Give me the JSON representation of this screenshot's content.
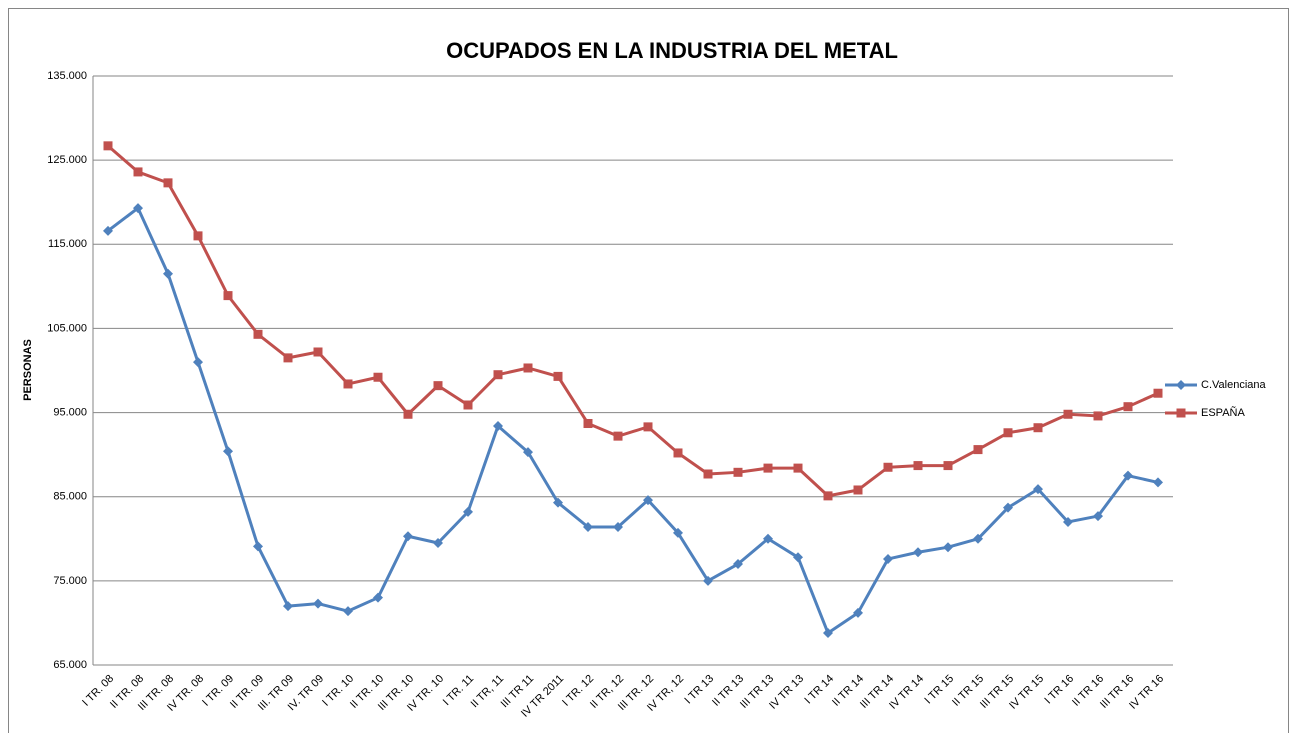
{
  "chart_data": {
    "type": "line",
    "title": "OCUPADOS EN LA INDUSTRIA DEL METAL",
    "y_axis_label": "PERSONAS",
    "categories": [
      "I TR. 08",
      "II TR. 08",
      "III TR. 08",
      "IV TR. 08",
      "I TR. 09",
      "II TR. 09",
      "III. TR 09",
      "IV. TR 09",
      "I TR. 10",
      "II TR. 10",
      "III TR. 10",
      "IV TR. 10",
      "I TR. 11",
      "II TR, 11",
      "III TR 11",
      "IV TR 2011",
      "I TR. 12",
      "II TR, 12",
      "III TR. 12",
      "IV TR, 12",
      "I TR 13",
      "II TR 13",
      "III TR 13",
      "IV TR 13",
      "I TR 14",
      "II TR 14",
      "III TR 14",
      "IV TR 14",
      "I TR 15",
      "II TR 15",
      "III TR 15",
      "IV TR 15",
      "I TR 16",
      "II TR 16",
      "III TR 16",
      "IV TR 16"
    ],
    "series": [
      {
        "name": "C.Valenciana",
        "color": "#4f81bd",
        "marker": "diamond",
        "values": [
          116600,
          119300,
          111500,
          101000,
          90400,
          79100,
          72000,
          72300,
          71400,
          73000,
          80300,
          79500,
          83200,
          93400,
          90300,
          84300,
          81400,
          81400,
          84600,
          80700,
          75000,
          77000,
          80000,
          77800,
          68800,
          71200,
          77600,
          78400,
          79000,
          80000,
          83700,
          85900,
          82000,
          82700,
          87500,
          86700
        ]
      },
      {
        "name": "ESPAÑA",
        "color": "#c0504d",
        "marker": "square",
        "values": [
          126700,
          123600,
          122300,
          116000,
          108900,
          104300,
          101500,
          102200,
          98400,
          99200,
          94800,
          98200,
          95900,
          99500,
          100300,
          99300,
          93700,
          92200,
          93300,
          90200,
          87700,
          87900,
          88400,
          88400,
          85100,
          85800,
          88500,
          88700,
          88700,
          90600,
          92600,
          93200,
          94800,
          94600,
          95700,
          97300
        ]
      }
    ],
    "ylim": [
      65000,
      135000
    ],
    "yticks": [
      {
        "value": 65000,
        "label": "65.000"
      },
      {
        "value": 75000,
        "label": "75.000"
      },
      {
        "value": 85000,
        "label": "85.000"
      },
      {
        "value": 95000,
        "label": "95.000"
      },
      {
        "value": 105000,
        "label": "105.000"
      },
      {
        "value": 115000,
        "label": "115.000"
      },
      {
        "value": 125000,
        "label": "125.000"
      },
      {
        "value": 135000,
        "label": "135.000"
      }
    ],
    "grid": true,
    "legend": "right"
  }
}
